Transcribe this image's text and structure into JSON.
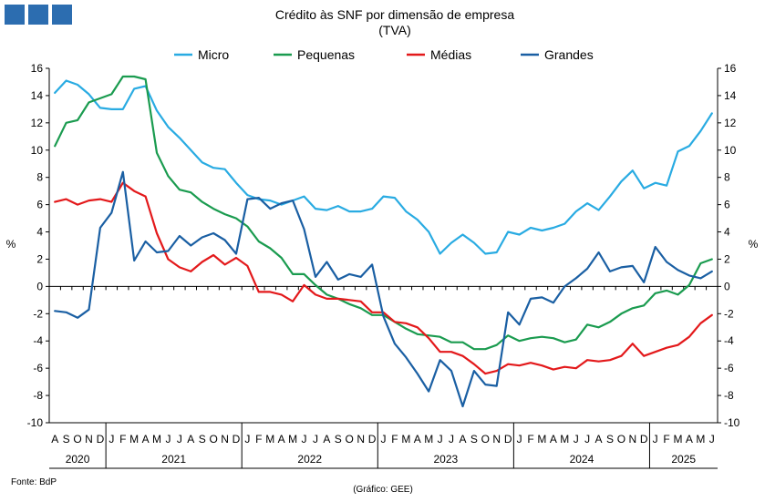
{
  "chart_data": {
    "type": "line",
    "title": "Crédito às SNF por dimensão de empresa",
    "subtitle": "(TVA)",
    "ylabel_left": "%",
    "ylabel_right": "%",
    "ylim": [
      -10,
      16
    ],
    "yticks": [
      -10,
      -8,
      -6,
      -4,
      -2,
      0,
      2,
      4,
      6,
      8,
      10,
      12,
      14,
      16
    ],
    "grid": false,
    "legend_position": "top",
    "x": [
      "2020-08",
      "2020-09",
      "2020-10",
      "2020-11",
      "2020-12",
      "2021-01",
      "2021-02",
      "2021-03",
      "2021-04",
      "2021-05",
      "2021-06",
      "2021-07",
      "2021-08",
      "2021-09",
      "2021-10",
      "2021-11",
      "2021-12",
      "2022-01",
      "2022-02",
      "2022-03",
      "2022-04",
      "2022-05",
      "2022-06",
      "2022-07",
      "2022-08",
      "2022-09",
      "2022-10",
      "2022-11",
      "2022-12",
      "2023-01",
      "2023-02",
      "2023-03",
      "2023-04",
      "2023-05",
      "2023-06",
      "2023-07",
      "2023-08",
      "2023-09",
      "2023-10",
      "2023-11",
      "2023-12",
      "2024-01",
      "2024-02",
      "2024-03",
      "2024-04",
      "2024-05",
      "2024-06",
      "2024-07",
      "2024-08",
      "2024-09",
      "2024-10",
      "2024-11",
      "2024-12",
      "2025-01",
      "2025-02",
      "2025-03",
      "2025-04",
      "2025-05",
      "2025-06"
    ],
    "month_labels": [
      "A",
      "S",
      "O",
      "N",
      "D",
      "J",
      "F",
      "M",
      "A",
      "M",
      "J",
      "J",
      "A",
      "S",
      "O",
      "N",
      "D",
      "J",
      "F",
      "M",
      "A",
      "M",
      "J",
      "J",
      "A",
      "S",
      "O",
      "N",
      "D",
      "J",
      "F",
      "M",
      "A",
      "M",
      "J",
      "J",
      "A",
      "S",
      "O",
      "N",
      "D",
      "J",
      "F",
      "M",
      "A",
      "M",
      "J",
      "J",
      "A",
      "S",
      "O",
      "N",
      "D",
      "J",
      "F",
      "M",
      "A",
      "M",
      "J"
    ],
    "year_labels": [
      {
        "label": "2020",
        "start": 0,
        "end": 4
      },
      {
        "label": "2021",
        "start": 5,
        "end": 16
      },
      {
        "label": "2022",
        "start": 17,
        "end": 28
      },
      {
        "label": "2023",
        "start": 29,
        "end": 40
      },
      {
        "label": "2024",
        "start": 41,
        "end": 52
      },
      {
        "label": "2025",
        "start": 53,
        "end": 58
      }
    ],
    "series": [
      {
        "name": "Micro",
        "color": "#29abe2",
        "values": [
          14.2,
          15.1,
          14.8,
          14.1,
          13.1,
          13.0,
          13.0,
          14.5,
          14.7,
          12.9,
          11.7,
          10.9,
          10.0,
          9.1,
          8.7,
          8.6,
          7.6,
          6.7,
          6.4,
          6.3,
          6.0,
          6.3,
          6.6,
          5.7,
          5.6,
          5.9,
          5.5,
          5.5,
          5.7,
          6.6,
          6.5,
          5.5,
          4.9,
          4.0,
          2.4,
          3.2,
          3.8,
          3.2,
          2.4,
          2.5,
          4.0,
          3.8,
          4.3,
          4.1,
          4.3,
          4.6,
          5.5,
          6.1,
          5.6,
          6.6,
          7.7,
          8.5,
          7.2,
          7.6,
          7.4,
          9.9,
          10.3,
          11.4,
          12.7
        ]
      },
      {
        "name": "Pequenas",
        "color": "#1a9b4f",
        "values": [
          10.3,
          12.0,
          12.2,
          13.5,
          13.8,
          14.1,
          15.4,
          15.4,
          15.2,
          9.8,
          8.1,
          7.1,
          6.9,
          6.2,
          5.7,
          5.3,
          5.0,
          4.4,
          3.3,
          2.8,
          2.1,
          0.9,
          0.9,
          0.1,
          -0.6,
          -0.9,
          -1.3,
          -1.6,
          -2.1,
          -2.1,
          -2.6,
          -3.1,
          -3.5,
          -3.6,
          -3.7,
          -4.1,
          -4.1,
          -4.6,
          -4.6,
          -4.3,
          -3.6,
          -4.0,
          -3.8,
          -3.7,
          -3.8,
          -4.1,
          -3.9,
          -2.8,
          -3.0,
          -2.6,
          -2.0,
          -1.6,
          -1.4,
          -0.5,
          -0.3,
          -0.6,
          0.1,
          1.7,
          2.0
        ]
      },
      {
        "name": "Médias",
        "color": "#e3191b",
        "values": [
          6.2,
          6.4,
          6.0,
          6.3,
          6.4,
          6.2,
          7.6,
          7.0,
          6.6,
          3.9,
          2.0,
          1.4,
          1.1,
          1.8,
          2.3,
          1.6,
          2.1,
          1.5,
          -0.4,
          -0.4,
          -0.6,
          -1.1,
          0.1,
          -0.6,
          -0.9,
          -0.9,
          -1.0,
          -1.1,
          -1.9,
          -1.9,
          -2.6,
          -2.7,
          -3.0,
          -3.8,
          -4.8,
          -4.8,
          -5.1,
          -5.7,
          -6.4,
          -6.2,
          -5.7,
          -5.8,
          -5.6,
          -5.8,
          -6.1,
          -5.9,
          -6.0,
          -5.4,
          -5.5,
          -5.4,
          -5.1,
          -4.2,
          -5.1,
          -4.8,
          -4.5,
          -4.3,
          -3.7,
          -2.7,
          -2.1
        ]
      },
      {
        "name": "Grandes",
        "color": "#1a5fa3",
        "values": [
          -1.8,
          -1.9,
          -2.3,
          -1.7,
          4.3,
          5.4,
          8.4,
          1.9,
          3.3,
          2.5,
          2.6,
          3.7,
          3.0,
          3.6,
          3.9,
          3.4,
          2.4,
          6.4,
          6.5,
          5.7,
          6.1,
          6.3,
          4.2,
          0.7,
          1.8,
          0.5,
          0.9,
          0.7,
          1.6,
          -2.2,
          -4.2,
          -5.2,
          -6.4,
          -7.7,
          -5.4,
          -6.2,
          -8.8,
          -6.2,
          -7.2,
          -7.3,
          -1.9,
          -2.8,
          -0.9,
          -0.8,
          -1.2,
          0.0,
          0.6,
          1.3,
          2.5,
          1.1,
          1.4,
          1.5,
          0.3,
          2.9,
          1.8,
          1.2,
          0.8,
          0.6,
          1.1
        ]
      }
    ]
  },
  "footer": {
    "source": "Fonte: BdP",
    "credit": "(Gráfico: GEE)"
  },
  "logo": {
    "color": "#2c6db0"
  }
}
